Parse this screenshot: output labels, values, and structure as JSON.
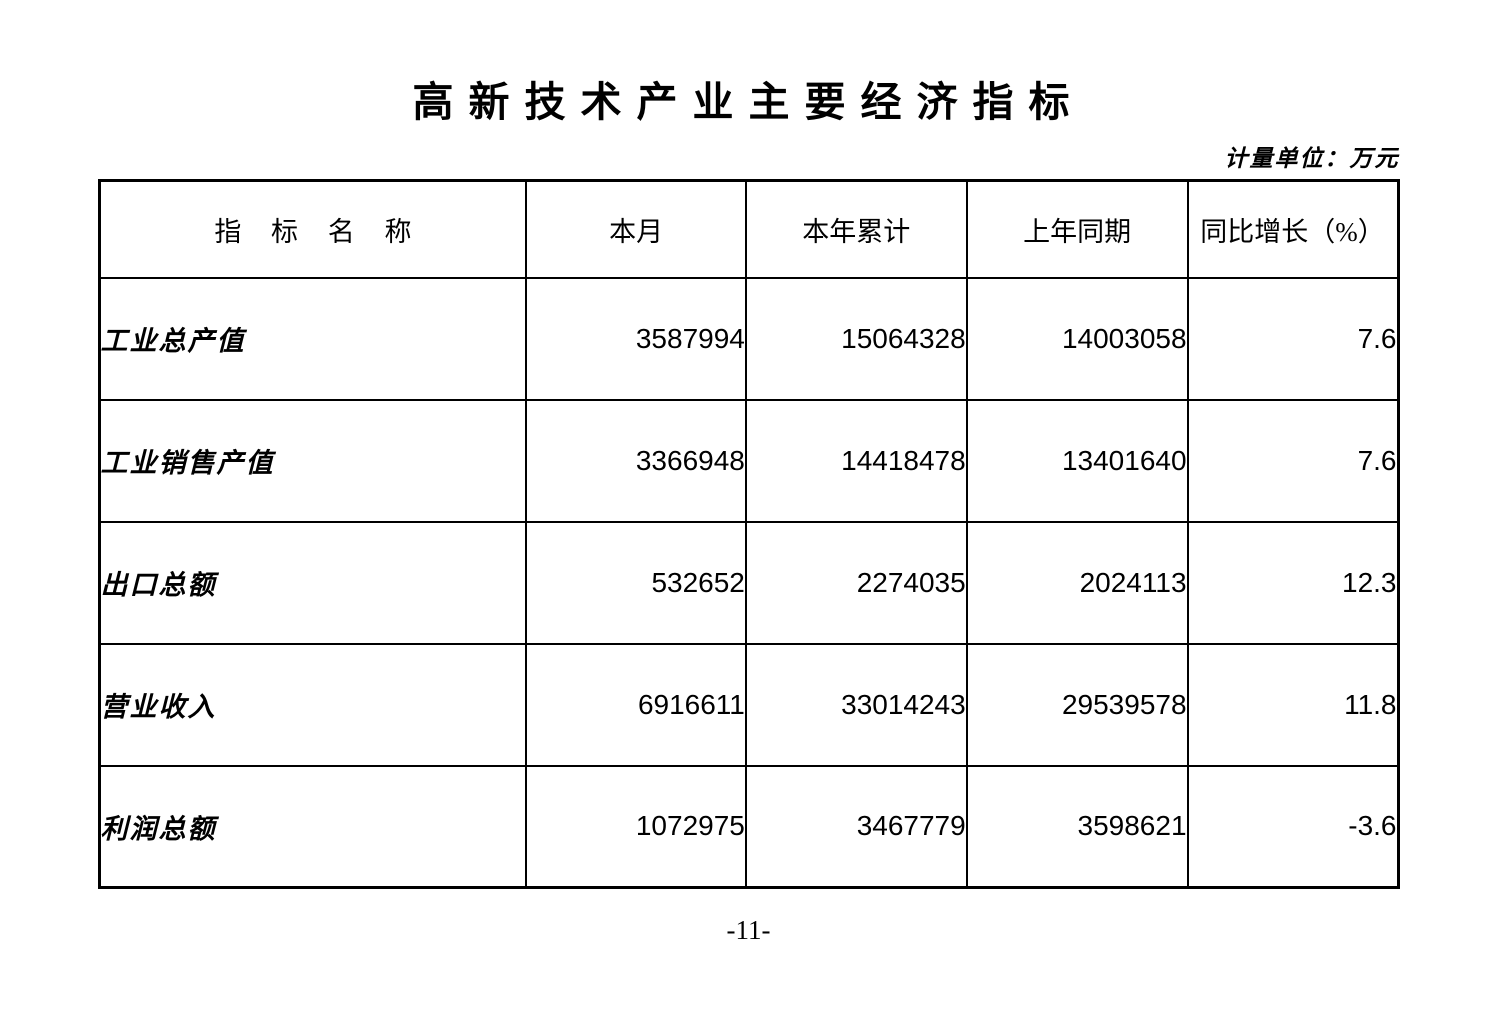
{
  "page": {
    "title": "高新技术产业主要经济指标",
    "unit_label": "计量单位：万元",
    "page_number": "-11-"
  },
  "table": {
    "columns": {
      "name": "指标名称",
      "current_month": "本月",
      "ytd": "本年累计",
      "prev_year_period": "上年同期",
      "yoy_growth": "同比增长（%）"
    },
    "rows": [
      {
        "label": "工业总产值",
        "values": [
          "3587994",
          "15064328",
          "14003058",
          "7.6"
        ]
      },
      {
        "label": "工业销售产值",
        "values": [
          "3366948",
          "14418478",
          "13401640",
          "7.6"
        ]
      },
      {
        "label": "出口总额",
        "values": [
          "532652",
          "2274035",
          "2024113",
          "12.3"
        ]
      },
      {
        "label": "营业收入",
        "values": [
          "6916611",
          "33014243",
          "29539578",
          "11.8"
        ]
      },
      {
        "label": "利润总额",
        "values": [
          "1072975",
          "3467779",
          "3598621",
          "-3.6"
        ]
      }
    ]
  }
}
